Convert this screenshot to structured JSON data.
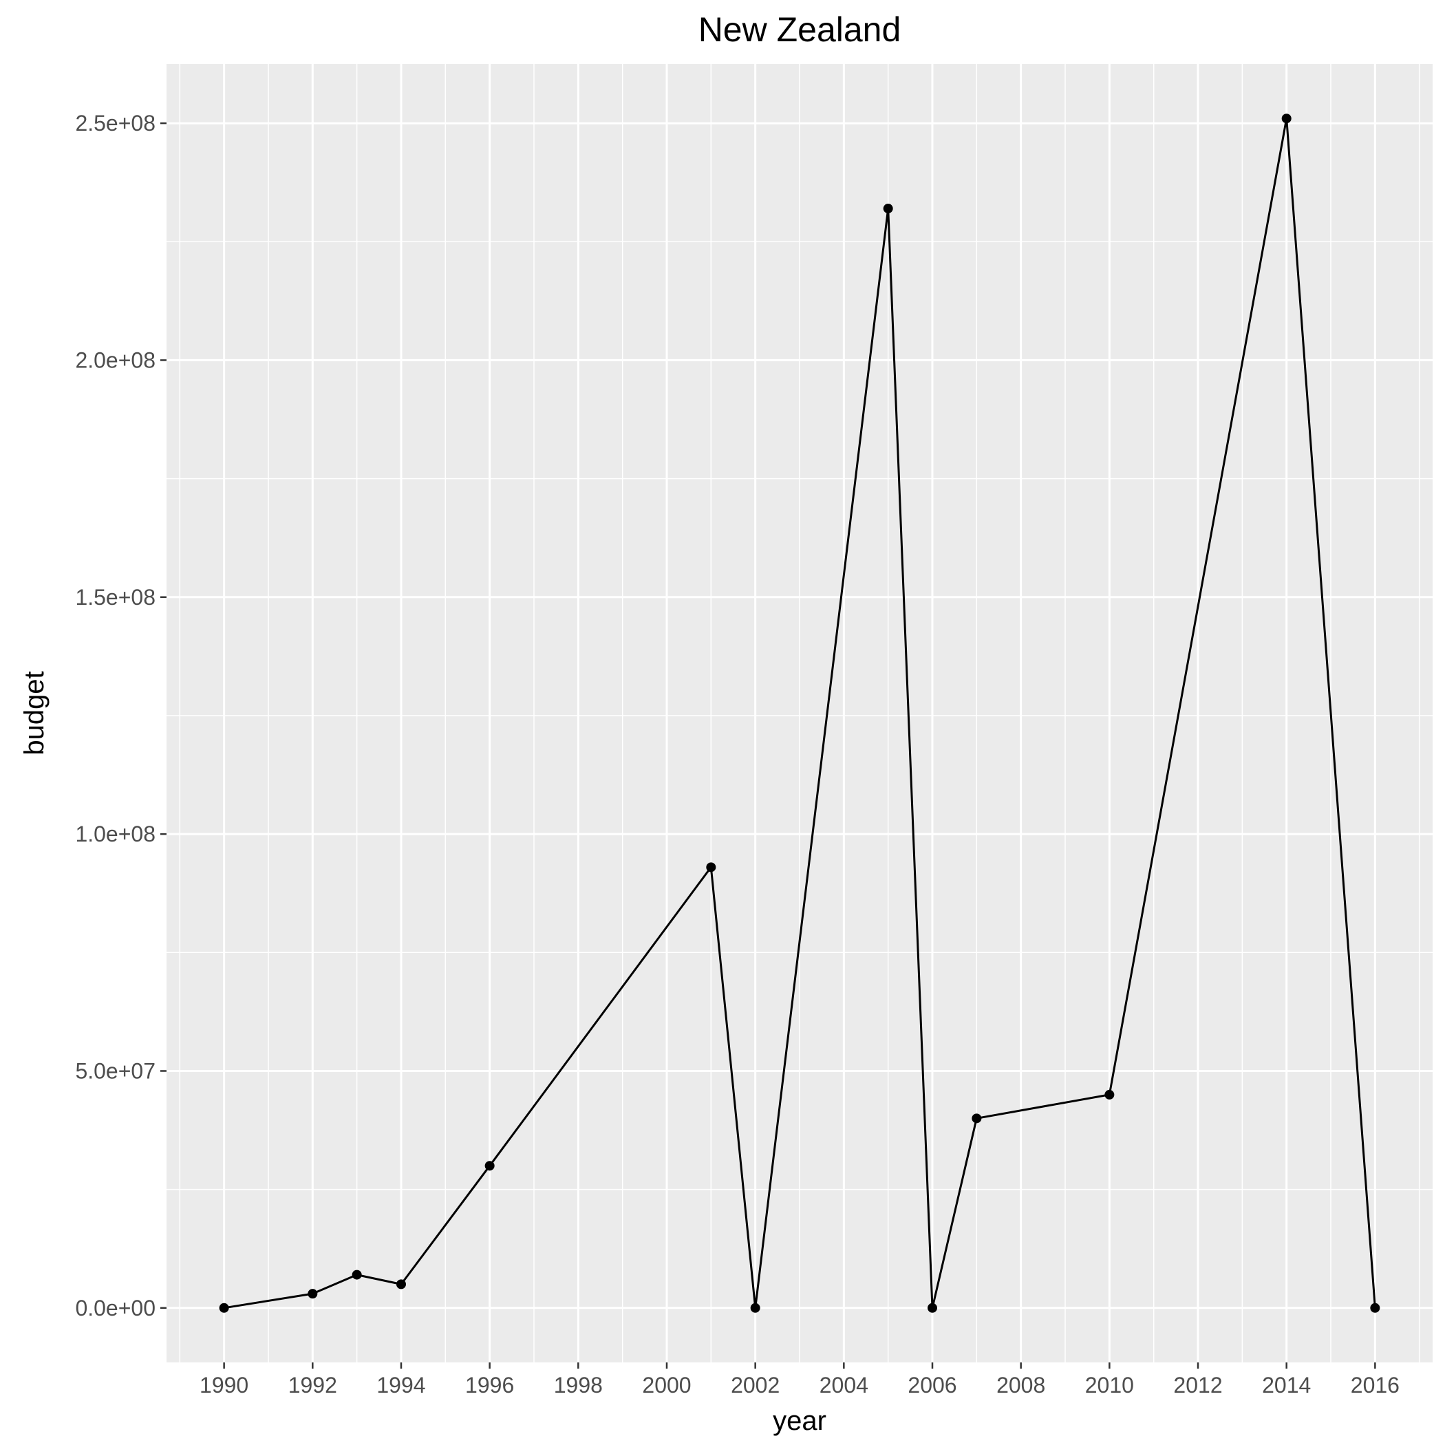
{
  "chart_data": {
    "type": "line",
    "title": "New Zealand",
    "xlabel": "year",
    "ylabel": "budget",
    "x": [
      1990,
      1992,
      1993,
      1994,
      1996,
      2001,
      2002,
      2005,
      2006,
      2007,
      2010,
      2014,
      2016
    ],
    "series": [
      {
        "values": [
          0,
          3000000,
          7000000,
          5000000,
          30000000,
          93000000,
          0,
          232000000,
          0,
          40000000,
          45000000,
          251000000,
          0
        ]
      }
    ],
    "xlim": [
      1988.7,
      2017.3
    ],
    "ylim": [
      -11500000,
      262500000
    ],
    "x_ticks": [
      1990,
      1992,
      1994,
      1996,
      1998,
      2000,
      2002,
      2004,
      2006,
      2008,
      2010,
      2012,
      2014,
      2016
    ],
    "x_tick_labels": [
      "1990",
      "1992",
      "1994",
      "1996",
      "1998",
      "2000",
      "2002",
      "2004",
      "2006",
      "2008",
      "2010",
      "2012",
      "2014",
      "2016"
    ],
    "y_ticks": [
      0,
      50000000,
      100000000,
      150000000,
      200000000,
      250000000
    ],
    "y_tick_labels": [
      "0.0e+00",
      "5.0e+07",
      "1.0e+08",
      "1.5e+08",
      "2.0e+08",
      "2.5e+08"
    ],
    "grid": true,
    "legend": "none",
    "colors": {
      "panel": "#ebebeb",
      "grid": "#ffffff",
      "line": "#000000",
      "tick_text": "#4d4d4d"
    }
  }
}
